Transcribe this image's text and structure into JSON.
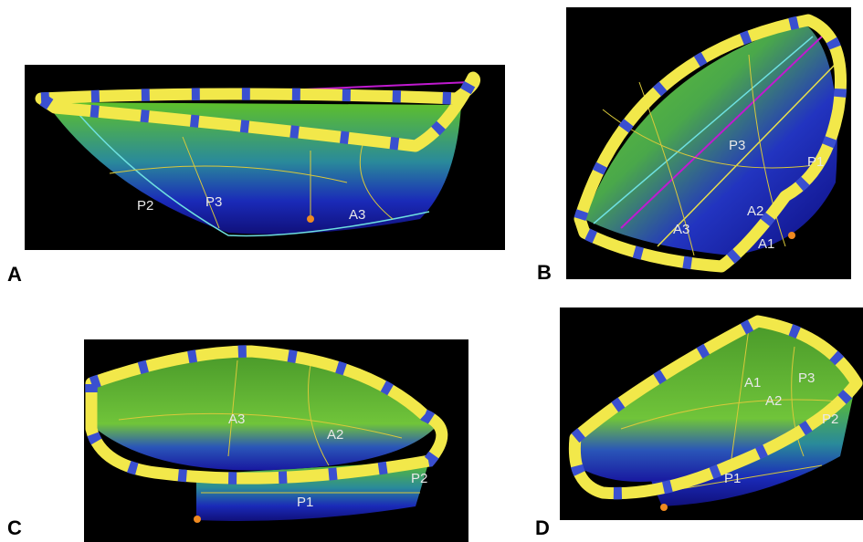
{
  "panels": [
    {
      "letter": "A",
      "labels": [
        "P2",
        "P3",
        "A3"
      ]
    },
    {
      "letter": "B",
      "labels": [
        "P3",
        "P1",
        "A3",
        "A2",
        "A1"
      ]
    },
    {
      "letter": "C",
      "labels": [
        "A3",
        "A2",
        "P2",
        "P1"
      ]
    },
    {
      "letter": "D",
      "labels": [
        "A1",
        "P3",
        "A2",
        "P2",
        "P1"
      ]
    }
  ]
}
